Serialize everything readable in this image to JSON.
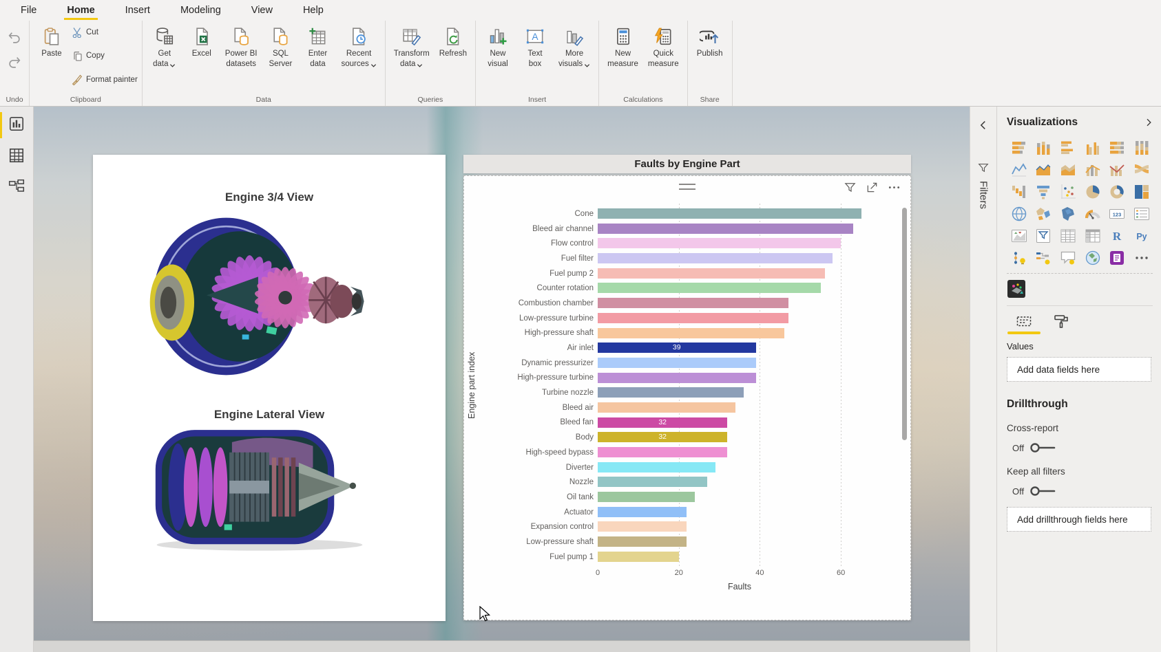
{
  "ribbon": {
    "tabs": [
      {
        "label": "File",
        "active": false
      },
      {
        "label": "Home",
        "active": true
      },
      {
        "label": "Insert",
        "active": false
      },
      {
        "label": "Modeling",
        "active": false
      },
      {
        "label": "View",
        "active": false
      },
      {
        "label": "Help",
        "active": false
      }
    ],
    "groups": [
      {
        "label": "Undo",
        "kind": "undo",
        "items": [
          {
            "name": "undo-button",
            "icon": "undo-arrow"
          },
          {
            "name": "redo-button",
            "icon": "redo-arrow"
          }
        ]
      },
      {
        "label": "Clipboard",
        "kind": "clipboard",
        "big": {
          "name": "paste-button",
          "icon": "paste",
          "lines": [
            "Paste"
          ]
        },
        "items": [
          {
            "name": "cut-button",
            "icon": "cut",
            "lines": [
              "Cut"
            ]
          },
          {
            "name": "copy-button",
            "icon": "copy",
            "lines": [
              "Copy"
            ]
          },
          {
            "name": "format-painter-button",
            "icon": "format-painter",
            "lines": [
              "Format painter"
            ]
          }
        ]
      },
      {
        "label": "Data",
        "kind": "normal",
        "items": [
          {
            "name": "get-data-button",
            "icon": "get-data",
            "lines": [
              "Get",
              "data"
            ],
            "dropdown": true
          },
          {
            "name": "excel-button",
            "icon": "excel",
            "lines": [
              "Excel"
            ]
          },
          {
            "name": "power-bi-datasets-button",
            "icon": "pbi-datasets",
            "lines": [
              "Power BI",
              "datasets"
            ]
          },
          {
            "name": "sql-server-button",
            "icon": "sql-server",
            "lines": [
              "SQL",
              "Server"
            ]
          },
          {
            "name": "enter-data-button",
            "icon": "enter-data",
            "lines": [
              "Enter",
              "data"
            ]
          },
          {
            "name": "recent-sources-button",
            "icon": "recent-sources",
            "lines": [
              "Recent",
              "sources"
            ],
            "dropdown": true
          }
        ]
      },
      {
        "label": "Queries",
        "kind": "normal",
        "items": [
          {
            "name": "transform-data-button",
            "icon": "transform-data",
            "lines": [
              "Transform",
              "data"
            ],
            "dropdown": true
          },
          {
            "name": "refresh-button",
            "icon": "refresh",
            "lines": [
              "Refresh"
            ]
          }
        ]
      },
      {
        "label": "Insert",
        "kind": "normal",
        "items": [
          {
            "name": "new-visual-button",
            "icon": "new-visual",
            "lines": [
              "New",
              "visual"
            ]
          },
          {
            "name": "text-box-button",
            "icon": "text-box",
            "lines": [
              "Text",
              "box"
            ]
          },
          {
            "name": "more-visuals-button",
            "icon": "more-visuals",
            "lines": [
              "More",
              "visuals"
            ],
            "dropdown": true
          }
        ]
      },
      {
        "label": "Calculations",
        "kind": "normal",
        "items": [
          {
            "name": "new-measure-button",
            "icon": "new-measure",
            "lines": [
              "New",
              "measure"
            ]
          },
          {
            "name": "quick-measure-button",
            "icon": "quick-measure",
            "lines": [
              "Quick",
              "measure"
            ]
          }
        ]
      },
      {
        "label": "Share",
        "kind": "normal",
        "items": [
          {
            "name": "publish-button",
            "icon": "publish",
            "lines": [
              "Publish"
            ]
          }
        ]
      }
    ]
  },
  "sidebar": {
    "views": [
      {
        "name": "report-view",
        "active": true
      },
      {
        "name": "data-view",
        "active": false
      },
      {
        "name": "model-view",
        "active": false
      }
    ]
  },
  "image_visual": {
    "title_top": "Engine 3/4 View",
    "title_bottom": "Engine Lateral View"
  },
  "chart_data": {
    "type": "bar",
    "orientation": "horizontal",
    "title": "Faults by Engine Part",
    "xlabel": "Faults",
    "ylabel": "Engine part index",
    "xlim": [
      0,
      70
    ],
    "xticks": [
      0,
      20,
      40,
      60
    ],
    "grid": true,
    "categories": [
      "Cone",
      "Bleed air channel",
      "Flow control",
      "Fuel filter",
      "Fuel pump 2",
      "Counter rotation",
      "Combustion chamber",
      "Low-pressure turbine",
      "High-pressure shaft",
      "Air inlet",
      "Dynamic pressurizer",
      "High-pressure turbine",
      "Turbine nozzle",
      "Bleed air",
      "Bleed fan",
      "Body",
      "High-speed bypass",
      "Diverter",
      "Nozzle",
      "Oil tank",
      "Actuator",
      "Expansion control",
      "Low-pressure shaft",
      "Fuel pump 1"
    ],
    "values": [
      65,
      63,
      60,
      58,
      56,
      55,
      47,
      47,
      46,
      39,
      39,
      39,
      36,
      34,
      32,
      32,
      32,
      29,
      27,
      24,
      22,
      22,
      22,
      20
    ],
    "bar_colors": [
      "#8fb1b1",
      "#a884c4",
      "#f3c7ea",
      "#ccc7f2",
      "#f6bcb4",
      "#a5d9a9",
      "#d08fa2",
      "#f29ba4",
      "#f8c79c",
      "#23389f",
      "#abcbfa",
      "#bc8fd6",
      "#8d9fb8",
      "#f5c5a0",
      "#cc4aa4",
      "#cdb32a",
      "#ee8fd2",
      "#86e8f5",
      "#92c5c5",
      "#9cc79e",
      "#90bff7",
      "#f9d6bd",
      "#c3b386",
      "#e3d48e"
    ],
    "data_labels": [
      "",
      "",
      "",
      "",
      "",
      "",
      "",
      "",
      "",
      "39",
      "",
      "",
      "",
      "",
      "32",
      "32",
      "",
      "",
      "",
      "",
      "",
      "",
      "",
      ""
    ],
    "header_icons": [
      "filter-icon",
      "focus-mode-icon",
      "more-options-icon"
    ]
  },
  "filters_pane": {
    "title": "Filters"
  },
  "viz_pane": {
    "title": "Visualizations",
    "gallery": [
      {
        "name": "stacked-bar-chart",
        "glyph": "barS"
      },
      {
        "name": "stacked-column-chart",
        "glyph": "colS"
      },
      {
        "name": "clustered-bar-chart",
        "glyph": "barC"
      },
      {
        "name": "clustered-column-chart",
        "glyph": "colC"
      },
      {
        "name": "100-stacked-bar-chart",
        "glyph": "bar100"
      },
      {
        "name": "100-stacked-column-chart",
        "glyph": "col100"
      },
      {
        "name": "line-chart",
        "glyph": "line"
      },
      {
        "name": "area-chart",
        "glyph": "area"
      },
      {
        "name": "stacked-area-chart",
        "glyph": "areaS"
      },
      {
        "name": "line-and-stacked-column-chart",
        "glyph": "combo1"
      },
      {
        "name": "line-and-clustered-column-chart",
        "glyph": "combo2"
      },
      {
        "name": "ribbon-chart",
        "glyph": "ribbon"
      },
      {
        "name": "waterfall-chart",
        "glyph": "waterfall"
      },
      {
        "name": "funnel-chart",
        "glyph": "funnelv"
      },
      {
        "name": "scatter-chart",
        "glyph": "scatter"
      },
      {
        "name": "pie-chart",
        "glyph": "pie"
      },
      {
        "name": "donut-chart",
        "glyph": "donut"
      },
      {
        "name": "treemap",
        "glyph": "treemap"
      },
      {
        "name": "map",
        "glyph": "globe"
      },
      {
        "name": "filled-map",
        "glyph": "fmap"
      },
      {
        "name": "shape-map",
        "glyph": "smap"
      },
      {
        "name": "gauge",
        "glyph": "gauge"
      },
      {
        "name": "card",
        "glyph": "card"
      },
      {
        "name": "multi-row-card",
        "glyph": "mrcard"
      },
      {
        "name": "kpi",
        "glyph": "kpi"
      },
      {
        "name": "slicer",
        "glyph": "slicer"
      },
      {
        "name": "table",
        "glyph": "table"
      },
      {
        "name": "matrix",
        "glyph": "matrix"
      },
      {
        "name": "r-script-visual",
        "glyph": "rtxt"
      },
      {
        "name": "python-visual",
        "glyph": "pytxt"
      },
      {
        "name": "key-influencers",
        "glyph": "keyinf"
      },
      {
        "name": "decomposition-tree",
        "glyph": "dtree"
      },
      {
        "name": "qa-visual",
        "glyph": "qa"
      },
      {
        "name": "azure-map",
        "glyph": "amap"
      },
      {
        "name": "paginated-report",
        "glyph": "prep"
      },
      {
        "name": "more-visual-options",
        "glyph": "dots"
      }
    ],
    "tabs": [
      {
        "name": "fields",
        "active": true
      },
      {
        "name": "format",
        "active": false
      }
    ],
    "values_label": "Values",
    "values_placeholder": "Add data fields here",
    "drillthrough": {
      "title": "Drillthrough",
      "cross_report_label": "Cross-report",
      "cross_report_state": "Off",
      "keep_all_label": "Keep all filters",
      "keep_all_state": "Off",
      "placeholder": "Add drillthrough fields here"
    }
  }
}
